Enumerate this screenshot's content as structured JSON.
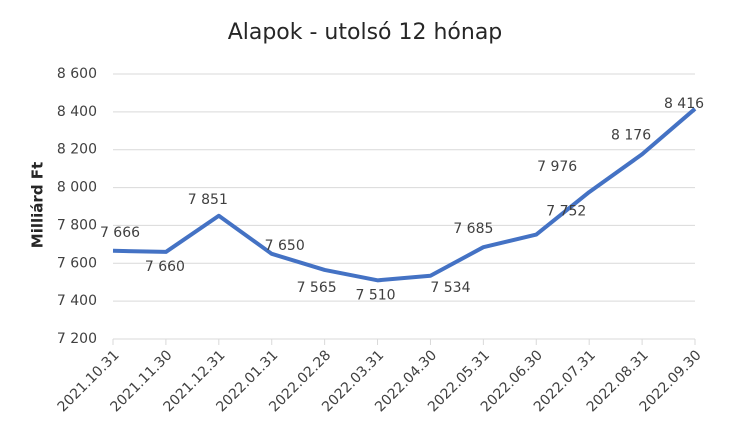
{
  "chart_data": {
    "type": "line",
    "title": "Alapok - utolsó 12 hónap",
    "y_label": "Milliárd Ft",
    "categories": [
      "2021.10.31",
      "2021.11.30",
      "2021.12.31",
      "2022.01.31",
      "2022.02.28",
      "2022.03.31",
      "2022.04.30",
      "2022.05.31",
      "2022.06.30",
      "2022.07.31",
      "2022.08.31",
      "2022.09.30"
    ],
    "series": [
      {
        "name": "Alapok",
        "color": "#4472c4",
        "values": [
          7666,
          7660,
          7851,
          7650,
          7565,
          7510,
          7534,
          7685,
          7752,
          7976,
          8176,
          8416
        ],
        "value_labels": [
          "7 666",
          "7 660",
          "7 851",
          "7 650",
          "7 565",
          "7 510",
          "7 534",
          "7 685",
          "7 752",
          "7 976",
          "8 176",
          "8 416"
        ]
      }
    ],
    "ylim": [
      7200,
      8600
    ],
    "yticks": [
      {
        "value": 7200,
        "label": "7 200"
      },
      {
        "value": 7400,
        "label": "7 400"
      },
      {
        "value": 7600,
        "label": "7 600"
      },
      {
        "value": 7800,
        "label": "7 800"
      },
      {
        "value": 8000,
        "label": "8 000"
      },
      {
        "value": 8200,
        "label": "8 200"
      },
      {
        "value": 8400,
        "label": "8 400"
      },
      {
        "value": 8600,
        "label": "8 600"
      }
    ],
    "grid": true
  }
}
